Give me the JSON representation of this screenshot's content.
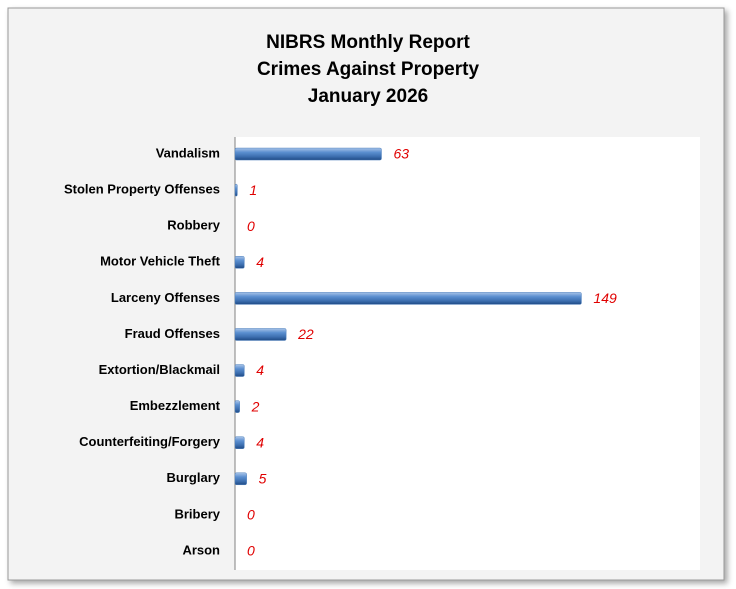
{
  "chart_data": {
    "type": "barh",
    "title": [
      "NIBRS Monthly Report",
      "Crimes Against Property",
      "January 2026"
    ],
    "categories": [
      "Vandalism",
      "Stolen Property Offenses",
      "Robbery",
      "Motor Vehicle Theft",
      "Larceny Offenses",
      "Fraud Offenses",
      "Extortion/Blackmail",
      "Embezzlement",
      "Counterfeiting/Forgery",
      "Burglary",
      "Bribery",
      "Arson"
    ],
    "values": [
      63,
      1,
      0,
      4,
      149,
      22,
      4,
      2,
      4,
      5,
      0,
      0
    ],
    "color": "#4f81bd",
    "label_color": "#e00000",
    "xlim": [
      0,
      200
    ]
  }
}
